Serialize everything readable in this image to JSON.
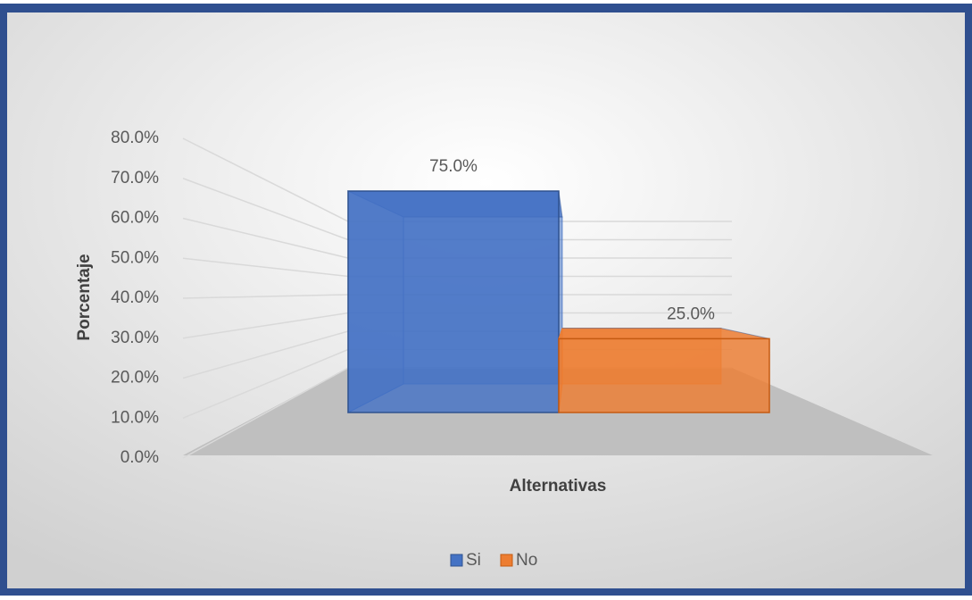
{
  "chart_data": {
    "type": "bar3d",
    "categories": [
      null
    ],
    "series": [
      {
        "name": "Si",
        "color": "#4472c4",
        "values": [
          75
        ],
        "value_labels": [
          "75.0%"
        ]
      },
      {
        "name": "No",
        "color": "#ed7d31",
        "values": [
          25
        ],
        "value_labels": [
          "25.0%"
        ]
      }
    ],
    "ylabel": "Porcentaje",
    "xlabel": "Alternativas",
    "ylim": [
      0,
      80
    ],
    "yticks": [
      {
        "value": 0,
        "label": "0.0%"
      },
      {
        "value": 10,
        "label": "10.0%"
      },
      {
        "value": 20,
        "label": "20.0%"
      },
      {
        "value": 30,
        "label": "30.0%"
      },
      {
        "value": 40,
        "label": "40.0%"
      },
      {
        "value": 50,
        "label": "50.0%"
      },
      {
        "value": 60,
        "label": "60.0%"
      },
      {
        "value": 70,
        "label": "70.0%"
      },
      {
        "value": 80,
        "label": "80.0%"
      }
    ],
    "grid": true,
    "legend": "bottom"
  }
}
